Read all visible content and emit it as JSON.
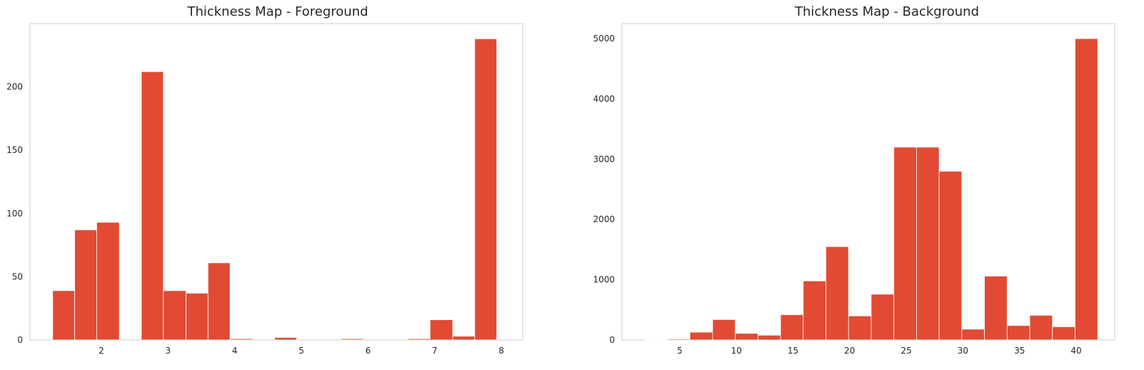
{
  "chart_data": [
    {
      "type": "bar",
      "title": "Thickness Map - Foreground",
      "xlabel": "",
      "ylabel": "",
      "xlim": [
        0.93,
        8.32
      ],
      "ylim": [
        0,
        250
      ],
      "xticks": [
        2,
        3,
        4,
        5,
        6,
        7,
        8
      ],
      "yticks": [
        0,
        50,
        100,
        150,
        200
      ],
      "bin_edges": [
        1.27,
        1.6,
        1.93,
        2.27,
        2.6,
        2.93,
        3.27,
        3.6,
        3.93,
        4.27,
        4.6,
        4.93,
        5.27,
        5.6,
        5.93,
        6.27,
        6.6,
        6.93,
        7.27,
        7.6,
        7.93
      ],
      "values": [
        39,
        87,
        93,
        0,
        212,
        39,
        37,
        61,
        1,
        0,
        2,
        0,
        0,
        1,
        0,
        0,
        1,
        16,
        3,
        238
      ],
      "bar_color": "#E24A33",
      "grid": false
    },
    {
      "type": "bar",
      "title": "Thickness Map - Background",
      "xlabel": "",
      "ylabel": "",
      "xlim": [
        -0.1,
        43.4
      ],
      "ylim": [
        0,
        5250
      ],
      "xticks": [
        5,
        10,
        15,
        20,
        25,
        30,
        35,
        40
      ],
      "yticks": [
        0,
        1000,
        2000,
        3000,
        4000,
        5000
      ],
      "bin_edges": [
        1.9,
        3.9,
        5.9,
        7.9,
        9.9,
        11.9,
        13.9,
        15.9,
        17.9,
        19.9,
        21.9,
        23.9,
        25.9,
        27.9,
        29.9,
        31.9,
        33.9,
        35.9,
        37.9,
        39.9,
        41.9
      ],
      "values": [
        5,
        15,
        130,
        340,
        110,
        80,
        420,
        980,
        1550,
        400,
        760,
        3200,
        3200,
        2800,
        180,
        1060,
        240,
        410,
        220,
        5000
      ],
      "bar_color": "#E24A33",
      "grid": false
    }
  ]
}
